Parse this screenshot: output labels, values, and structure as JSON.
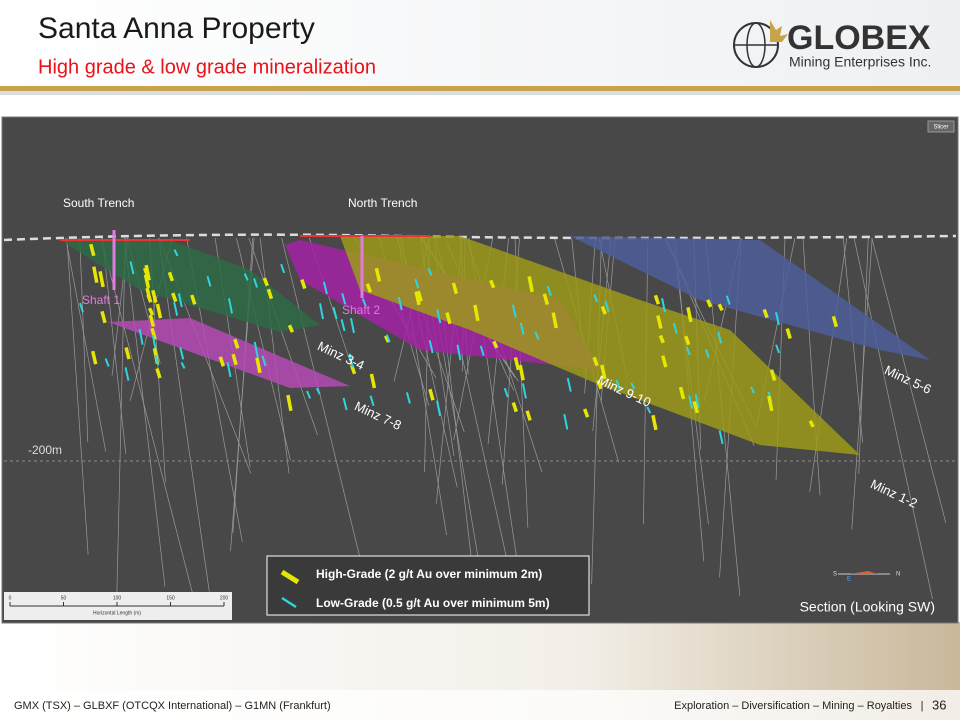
{
  "header": {
    "title": "Santa Anna Property",
    "subtitle": "High grade & low grade mineralization"
  },
  "logo": {
    "name": "GLOBEX",
    "tagline": "Mining Enterprises Inc."
  },
  "section": {
    "slicer": "Slicer",
    "labels": [
      "South Trench",
      "North Trench",
      "Shaft 1",
      "Shaft 2",
      "Minz 3-4",
      "Minz 7-8",
      "Minz 9-10",
      "Minz 5-6",
      "Minz 1-2"
    ],
    "depth_label": "-200m",
    "legend": [
      "High-Grade (2 g/t Au over minimum 2m)",
      "Low-Grade (0.5 g/t Au over minimum 5m)"
    ],
    "view": "Section (Looking SW)",
    "scale_ticks": [
      "0",
      "50",
      "100",
      "150",
      "200"
    ],
    "scale_title": "Horizontal Length (m)",
    "compass": [
      "S",
      "E",
      "N"
    ]
  },
  "footer": {
    "left": "GMX (TSX) – GLBXF (OTCQX International) – G1MN (Frankfurt)",
    "right": "Exploration – Diversification – Mining – Royalties",
    "separator": "|",
    "page": "36"
  }
}
